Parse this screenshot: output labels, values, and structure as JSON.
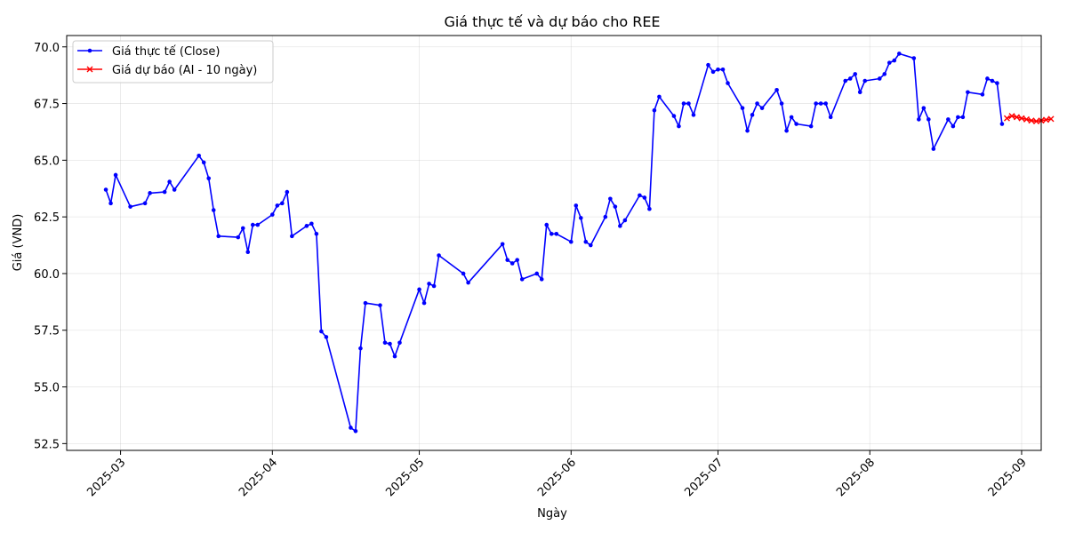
{
  "chart_data": {
    "type": "line",
    "title": "Giá thực tế và dự báo cho REE",
    "xlabel": "Ngày",
    "ylabel": "Giá (VND)",
    "xlim": [
      "2025-02-18",
      "2025-09-05"
    ],
    "ylim": [
      52.2,
      70.5
    ],
    "x_ticks": [
      "2025-03-01",
      "2025-04-01",
      "2025-05-01",
      "2025-06-01",
      "2025-07-01",
      "2025-08-01",
      "2025-09-01"
    ],
    "x_tick_labels": [
      "2025-03",
      "2025-04",
      "2025-05",
      "2025-06",
      "2025-07",
      "2025-08",
      "2025-09"
    ],
    "y_ticks": [
      52.5,
      55.0,
      57.5,
      60.0,
      62.5,
      65.0,
      67.5,
      70.0
    ],
    "y_tick_labels": [
      "52.5",
      "55.0",
      "57.5",
      "60.0",
      "62.5",
      "65.0",
      "67.5",
      "70.0"
    ],
    "grid": true,
    "legend_position": "top-left",
    "series": [
      {
        "name": "Giá thực tế (Close)",
        "color": "#0000ff",
        "marker": "dot",
        "points": [
          [
            "2025-02-26",
            63.7
          ],
          [
            "2025-02-27",
            63.1
          ],
          [
            "2025-02-28",
            64.35
          ],
          [
            "2025-03-03",
            62.95
          ],
          [
            "2025-03-06",
            63.1
          ],
          [
            "2025-03-07",
            63.55
          ],
          [
            "2025-03-10",
            63.6
          ],
          [
            "2025-03-11",
            64.05
          ],
          [
            "2025-03-12",
            63.7
          ],
          [
            "2025-03-17",
            65.2
          ],
          [
            "2025-03-18",
            64.9
          ],
          [
            "2025-03-19",
            64.2
          ],
          [
            "2025-03-20",
            62.8
          ],
          [
            "2025-03-21",
            61.65
          ],
          [
            "2025-03-25",
            61.6
          ],
          [
            "2025-03-26",
            62.0
          ],
          [
            "2025-03-27",
            60.95
          ],
          [
            "2025-03-28",
            62.15
          ],
          [
            "2025-03-29",
            62.15
          ],
          [
            "2025-04-01",
            62.6
          ],
          [
            "2025-04-02",
            63.0
          ],
          [
            "2025-04-03",
            63.1
          ],
          [
            "2025-04-04",
            63.6
          ],
          [
            "2025-04-05",
            61.65
          ],
          [
            "2025-04-08",
            62.1
          ],
          [
            "2025-04-09",
            62.2
          ],
          [
            "2025-04-10",
            61.75
          ],
          [
            "2025-04-11",
            57.45
          ],
          [
            "2025-04-12",
            57.2
          ],
          [
            "2025-04-17",
            53.2
          ],
          [
            "2025-04-18",
            53.05
          ],
          [
            "2025-04-19",
            56.7
          ],
          [
            "2025-04-20",
            58.7
          ],
          [
            "2025-04-23",
            58.6
          ],
          [
            "2025-04-24",
            56.95
          ],
          [
            "2025-04-25",
            56.9
          ],
          [
            "2025-04-26",
            56.35
          ],
          [
            "2025-04-27",
            56.95
          ],
          [
            "2025-05-01",
            59.3
          ],
          [
            "2025-05-02",
            58.7
          ],
          [
            "2025-05-03",
            59.55
          ],
          [
            "2025-05-04",
            59.45
          ],
          [
            "2025-05-05",
            60.8
          ],
          [
            "2025-05-10",
            60.0
          ],
          [
            "2025-05-11",
            59.6
          ],
          [
            "2025-05-18",
            61.3
          ],
          [
            "2025-05-19",
            60.6
          ],
          [
            "2025-05-20",
            60.45
          ],
          [
            "2025-05-21",
            60.6
          ],
          [
            "2025-05-22",
            59.75
          ],
          [
            "2025-05-25",
            60.0
          ],
          [
            "2025-05-26",
            59.75
          ],
          [
            "2025-05-27",
            62.15
          ],
          [
            "2025-05-28",
            61.75
          ],
          [
            "2025-05-29",
            61.75
          ],
          [
            "2025-06-01",
            61.4
          ],
          [
            "2025-06-02",
            63.0
          ],
          [
            "2025-06-03",
            62.45
          ],
          [
            "2025-06-04",
            61.4
          ],
          [
            "2025-06-05",
            61.25
          ],
          [
            "2025-06-08",
            62.5
          ],
          [
            "2025-06-09",
            63.3
          ],
          [
            "2025-06-10",
            62.95
          ],
          [
            "2025-06-11",
            62.1
          ],
          [
            "2025-06-12",
            62.35
          ],
          [
            "2025-06-15",
            63.45
          ],
          [
            "2025-06-16",
            63.35
          ],
          [
            "2025-06-17",
            62.85
          ],
          [
            "2025-06-18",
            67.2
          ],
          [
            "2025-06-19",
            67.8
          ],
          [
            "2025-06-22",
            66.95
          ],
          [
            "2025-06-23",
            66.5
          ],
          [
            "2025-06-24",
            67.5
          ],
          [
            "2025-06-25",
            67.5
          ],
          [
            "2025-06-26",
            67.0
          ],
          [
            "2025-06-29",
            69.2
          ],
          [
            "2025-06-30",
            68.9
          ],
          [
            "2025-07-01",
            69.0
          ],
          [
            "2025-07-02",
            69.0
          ],
          [
            "2025-07-03",
            68.4
          ],
          [
            "2025-07-06",
            67.3
          ],
          [
            "2025-07-07",
            66.3
          ],
          [
            "2025-07-08",
            67.0
          ],
          [
            "2025-07-09",
            67.5
          ],
          [
            "2025-07-10",
            67.3
          ],
          [
            "2025-07-13",
            68.1
          ],
          [
            "2025-07-14",
            67.5
          ],
          [
            "2025-07-15",
            66.3
          ],
          [
            "2025-07-16",
            66.9
          ],
          [
            "2025-07-17",
            66.6
          ],
          [
            "2025-07-20",
            66.5
          ],
          [
            "2025-07-21",
            67.5
          ],
          [
            "2025-07-22",
            67.5
          ],
          [
            "2025-07-23",
            67.5
          ],
          [
            "2025-07-24",
            66.9
          ],
          [
            "2025-07-27",
            68.5
          ],
          [
            "2025-07-28",
            68.6
          ],
          [
            "2025-07-29",
            68.8
          ],
          [
            "2025-07-30",
            68.0
          ],
          [
            "2025-07-31",
            68.5
          ],
          [
            "2025-08-03",
            68.6
          ],
          [
            "2025-08-04",
            68.8
          ],
          [
            "2025-08-05",
            69.3
          ],
          [
            "2025-08-06",
            69.4
          ],
          [
            "2025-08-07",
            69.7
          ],
          [
            "2025-08-10",
            69.5
          ],
          [
            "2025-08-11",
            66.8
          ],
          [
            "2025-08-12",
            67.3
          ],
          [
            "2025-08-13",
            66.8
          ],
          [
            "2025-08-14",
            65.5
          ],
          [
            "2025-08-17",
            66.8
          ],
          [
            "2025-08-18",
            66.5
          ],
          [
            "2025-08-19",
            66.9
          ],
          [
            "2025-08-20",
            66.9
          ],
          [
            "2025-08-21",
            68.0
          ],
          [
            "2025-08-24",
            67.9
          ],
          [
            "2025-08-25",
            68.6
          ],
          [
            "2025-08-26",
            68.5
          ],
          [
            "2025-08-27",
            68.4
          ],
          [
            "2025-08-28",
            66.6
          ]
        ]
      },
      {
        "name": "Giá dự báo (AI - 10 ngày)",
        "color": "#ff0000",
        "marker": "x",
        "points": [
          [
            "2025-08-29",
            66.85
          ],
          [
            "2025-08-30",
            66.95
          ],
          [
            "2025-08-31",
            66.9
          ],
          [
            "2025-09-01",
            66.85
          ],
          [
            "2025-09-02",
            66.8
          ],
          [
            "2025-09-03",
            66.75
          ],
          [
            "2025-09-04",
            66.72
          ],
          [
            "2025-09-05",
            66.75
          ],
          [
            "2025-09-06",
            66.78
          ],
          [
            "2025-09-07",
            66.82
          ]
        ]
      }
    ]
  }
}
